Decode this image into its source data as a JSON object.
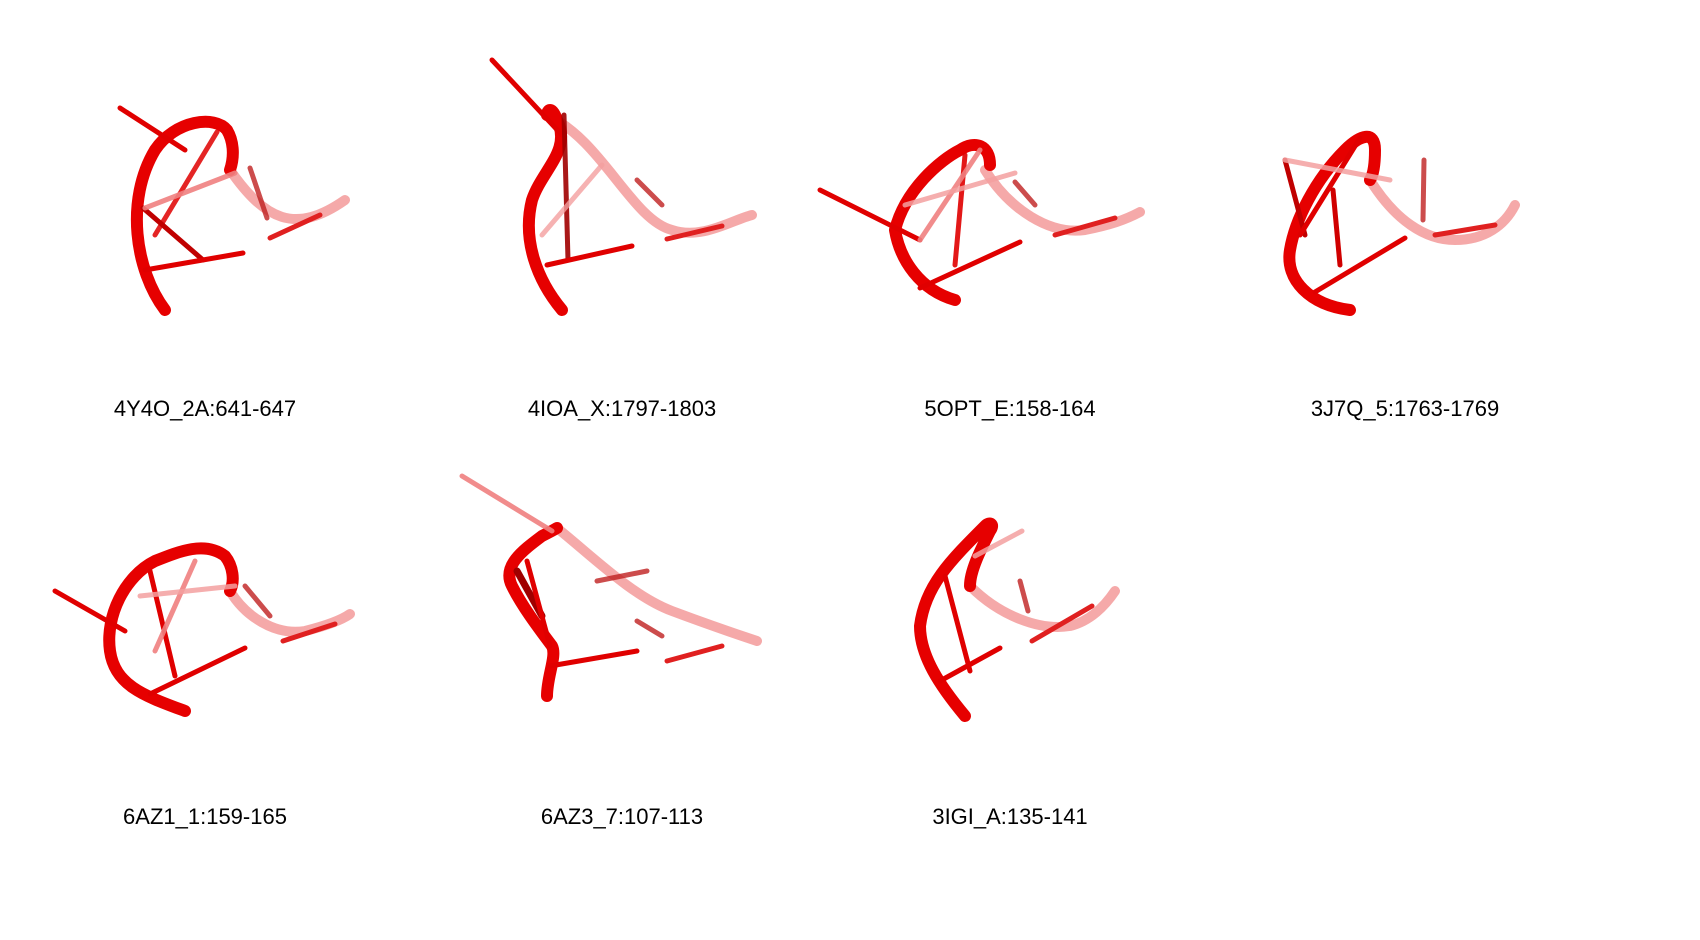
{
  "structure_color": "#e00000",
  "panels": [
    {
      "label": "4Y4O_2A:641-647"
    },
    {
      "label": "4IOA_X:1797-1803"
    },
    {
      "label": "5OPT_E:158-164"
    },
    {
      "label": "3J7Q_5:1763-1769"
    },
    {
      "label": "6AZ1_1:159-165"
    },
    {
      "label": "6AZ3_7:107-113"
    },
    {
      "label": "3IGI_A:135-141"
    }
  ]
}
